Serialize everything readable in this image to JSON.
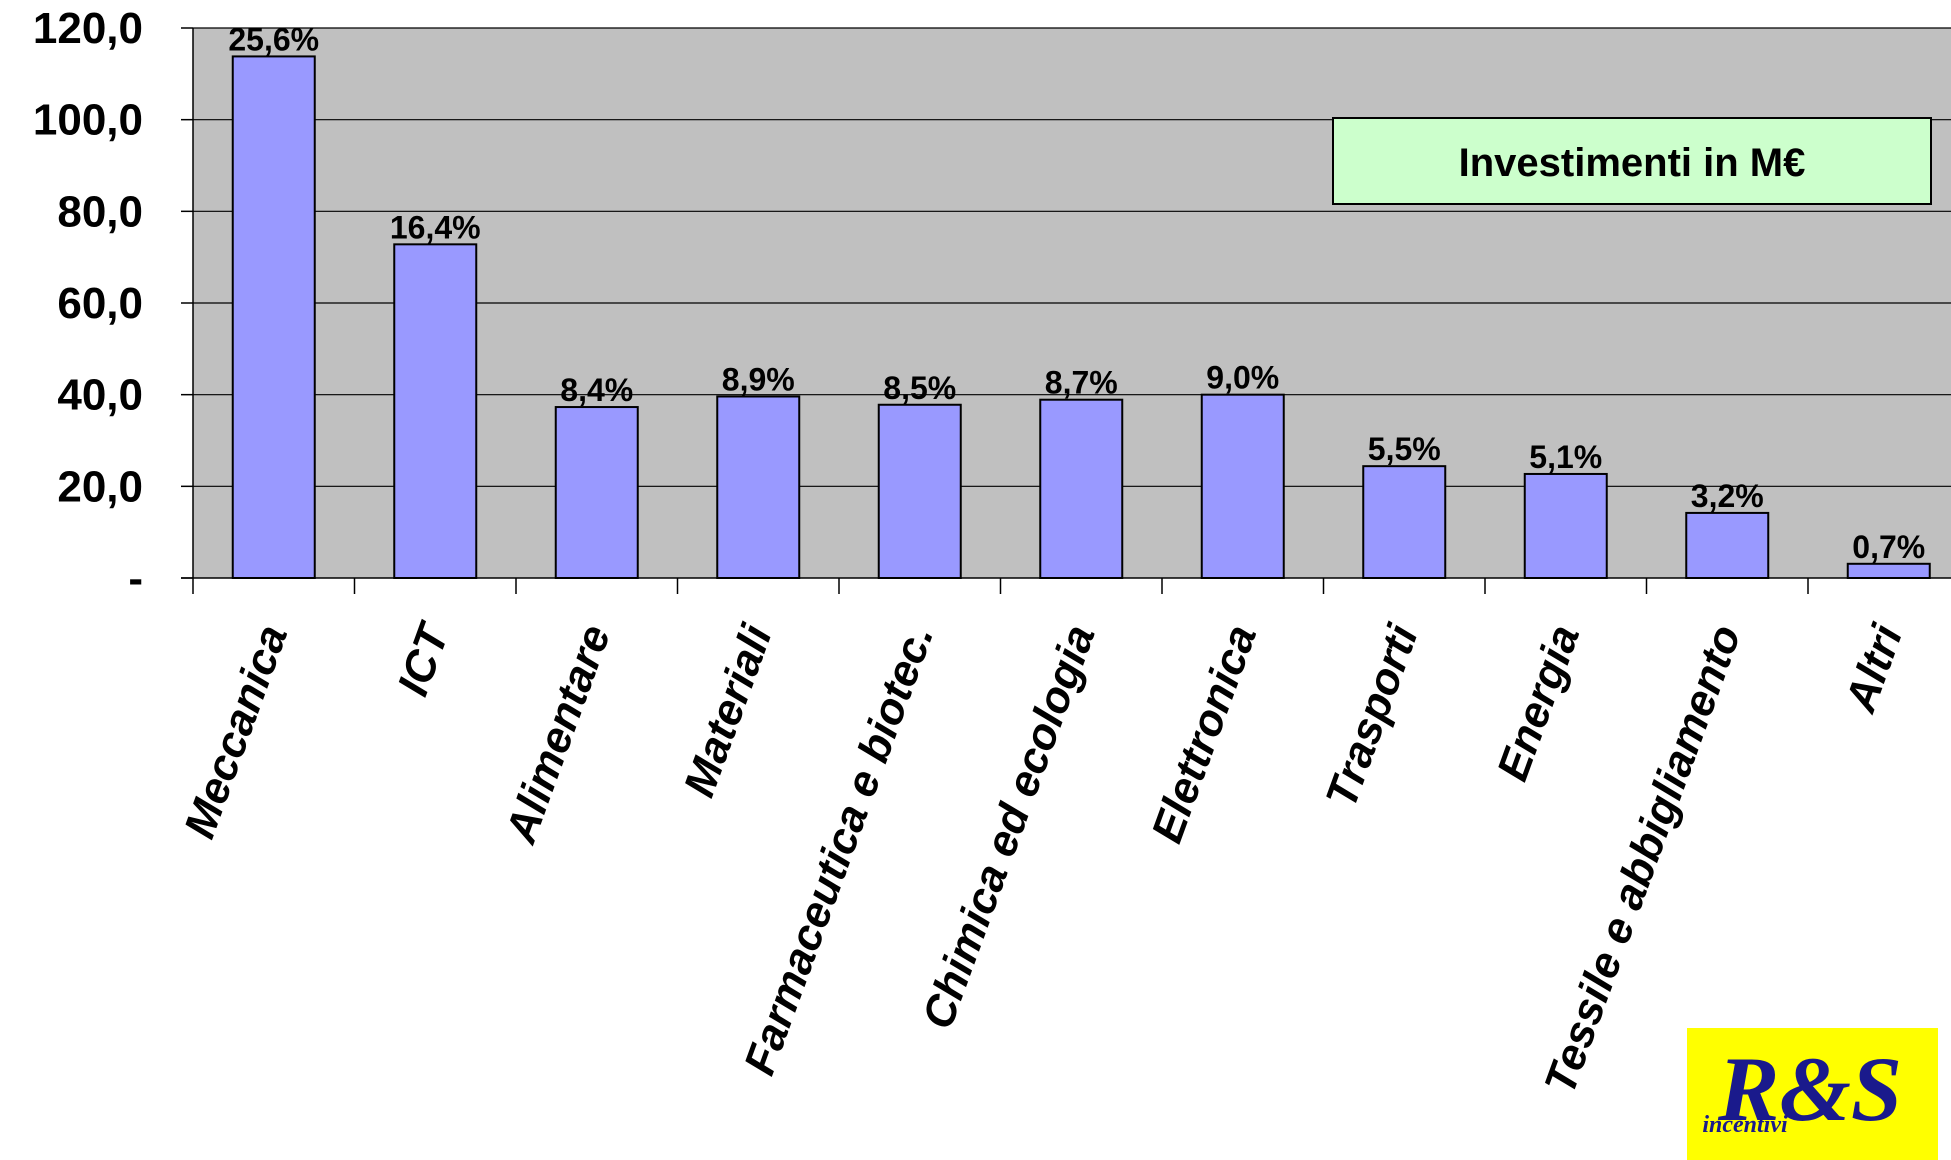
{
  "chart_data": {
    "type": "bar",
    "categories": [
      "Meccanica",
      "ICT",
      "Alimentare",
      "Materiali",
      "Farmaceutica e biotec.",
      "Chimica ed ecologia",
      "Elettronica",
      "Trasporti",
      "Energia",
      "Tessile e abbigliamento",
      "Altri"
    ],
    "values": [
      113.8,
      72.8,
      37.3,
      39.6,
      37.8,
      38.9,
      40.0,
      24.4,
      22.7,
      14.2,
      3.1
    ],
    "data_labels": [
      "25,6%",
      "16,4%",
      "8,4%",
      "8,9%",
      "8,5%",
      "8,7%",
      "9,0%",
      "5,5%",
      "5,1%",
      "3,2%",
      "0,7%"
    ],
    "y_ticks": [
      {
        "value": 0,
        "label": "-"
      },
      {
        "value": 20,
        "label": "20,0"
      },
      {
        "value": 40,
        "label": "40,0"
      },
      {
        "value": 60,
        "label": "60,0"
      },
      {
        "value": 80,
        "label": "80,0"
      },
      {
        "value": 100,
        "label": "100,0"
      },
      {
        "value": 120,
        "label": "120,0"
      }
    ],
    "ylim": [
      0,
      120
    ],
    "grid": true,
    "legend": {
      "text": "Investimenti in  M€",
      "placement": "top-right"
    },
    "colors": {
      "bar": "#9999ff",
      "plot_bg": "#c0c0c0",
      "legend_bg": "#ccffcc"
    }
  },
  "logo": {
    "text": "R&S incentivi",
    "colors": {
      "bg": "#ffff00",
      "ink": "#1a1a8c"
    }
  }
}
